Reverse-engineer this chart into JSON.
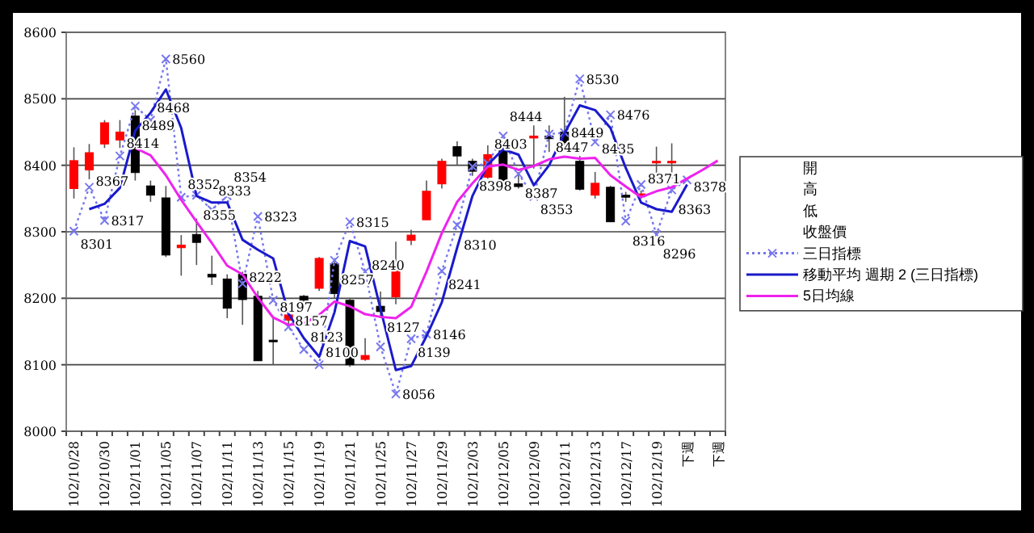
{
  "chart_data": {
    "type": "candlestick",
    "categories": [
      "102/10/28",
      null,
      "102/10/30",
      null,
      "102/11/01",
      null,
      "102/11/05",
      null,
      "102/11/07",
      null,
      "102/11/11",
      null,
      "102/11/13",
      null,
      "102/11/15",
      null,
      "102/11/19",
      null,
      "102/11/21",
      null,
      "102/11/25",
      null,
      "102/11/27",
      null,
      "102/11/29",
      null,
      "102/12/03",
      null,
      "102/12/05",
      null,
      "102/12/09",
      null,
      "102/12/11",
      null,
      "102/12/13",
      null,
      "102/12/17",
      null,
      "102/12/19",
      null,
      "下週",
      null,
      "下週"
    ],
    "ylim": [
      8000,
      8600
    ],
    "yticks": [
      8000,
      8100,
      8200,
      8300,
      8400,
      8500,
      8600
    ],
    "grid": "y",
    "legend": "right",
    "colors": [
      "#ff0000",
      "#ff0000",
      "#ff0000",
      "#ff0000",
      "#000000",
      "#000000",
      "#000000",
      "#ff0000",
      "#000000",
      "#000000",
      "#000000",
      "#000000",
      "#000000",
      "#000000",
      "#ff0000",
      "#000000",
      "#ff0000",
      "#000000",
      "#000000",
      "#ff0000",
      "#000000",
      "#ff0000",
      "#ff0000",
      "#ff0000",
      "#ff0000",
      "#000000",
      "#000000",
      "#ff0000",
      "#000000",
      "#000000",
      "#ff0000",
      "#000000",
      "#000000",
      "#000000",
      "#ff0000",
      "#000000",
      "#000000",
      "#ff0000",
      "#ff0000",
      "#ff0000",
      null,
      null,
      null
    ],
    "annotations": [
      "開",
      "高",
      "低",
      "收盤價"
    ],
    "ohlc": [
      [
        8365,
        8427,
        8350,
        8407
      ],
      [
        8393,
        8432,
        8379,
        8419
      ],
      [
        8432,
        8468,
        8426,
        8464
      ],
      [
        8438,
        8468,
        8426,
        8450
      ],
      [
        8474,
        8483,
        8377,
        8389
      ],
      [
        8369,
        8377,
        8345,
        8355
      ],
      [
        8351,
        8369,
        8262,
        8265
      ],
      [
        8276,
        8295,
        8234,
        8280
      ],
      [
        8296,
        8320,
        8250,
        8284
      ],
      [
        8236,
        8264,
        8220,
        8232
      ],
      [
        8229,
        8236,
        8170,
        8185
      ],
      [
        8236,
        8240,
        8160,
        8198
      ],
      [
        8203,
        8211,
        8106,
        8106
      ],
      [
        8137,
        8171,
        8100,
        8135
      ],
      [
        8167,
        8180,
        8160,
        8175
      ],
      [
        8203,
        8205,
        8193,
        8197
      ],
      [
        8215,
        8262,
        8211,
        8260
      ],
      [
        8252,
        8256,
        8200,
        8207
      ],
      [
        8197,
        8199,
        8097,
        8100
      ],
      [
        8108,
        8140,
        8106,
        8114
      ],
      [
        8188,
        8210,
        8170,
        8180
      ],
      [
        8202,
        8285,
        8191,
        8248
      ],
      [
        8287,
        8303,
        8280,
        8295
      ],
      [
        8318,
        8377,
        8318,
        8361
      ],
      [
        8372,
        8410,
        8365,
        8406
      ],
      [
        8428,
        8436,
        8400,
        8414
      ],
      [
        8406,
        8410,
        8384,
        8391
      ],
      [
        8382,
        8430,
        8380,
        8416
      ],
      [
        8426,
        8436,
        8365,
        8377
      ],
      [
        8372,
        8390,
        8365,
        8368
      ],
      [
        8441,
        8460,
        8395,
        8444
      ],
      [
        8444,
        8460,
        8420,
        8440
      ],
      [
        8450,
        8503,
        8430,
        8434
      ],
      [
        8406,
        8414,
        8362,
        8364
      ],
      [
        8355,
        8390,
        8350,
        8373
      ],
      [
        8367,
        8369,
        8315,
        8315
      ],
      [
        8355,
        8360,
        8345,
        8352
      ],
      [
        8355,
        8362,
        8350,
        8357
      ],
      [
        8404,
        8428,
        8384,
        8406
      ],
      [
        8404,
        8433,
        8380,
        8406
      ],
      null,
      null,
      null
    ],
    "series": [
      {
        "type": "line",
        "name": "三日指標",
        "color": "#7777ee",
        "marker": "cross",
        "line_style": "dotted",
        "data_labels": true,
        "values": [
          8301,
          8367,
          8317,
          8414,
          8489,
          8468,
          8560,
          8352,
          8355,
          8333,
          8354,
          8222,
          8323,
          8197,
          8157,
          8123,
          8100,
          8257,
          8315,
          8240,
          8127,
          8056,
          8139,
          8146,
          8241,
          8310,
          8398,
          8403,
          8444,
          8387,
          8353,
          8447,
          8449,
          8530,
          8435,
          8476,
          8316,
          8371,
          8296,
          8363,
          8378,
          null,
          null
        ]
      },
      {
        "type": "line",
        "name": "移動平均 週期 2 (三日指標)",
        "color": "#1a1acc",
        "line_style": "solid",
        "values": [
          null,
          8334,
          8342,
          8366,
          8452,
          8479,
          8514,
          8456,
          8354,
          8344,
          8344,
          8288,
          8273,
          8260,
          8177,
          8140,
          8112,
          8179,
          8286,
          8278,
          8184,
          8092,
          8098,
          8143,
          8194,
          8276,
          8354,
          8401,
          8424,
          8416,
          8370,
          8400,
          8448,
          8490,
          8483,
          8456,
          8396,
          8344,
          8334,
          8330,
          8371,
          null,
          null
        ]
      },
      {
        "type": "line",
        "name": "5日均線",
        "color": "#ee22ee",
        "line_style": "solid",
        "values": [
          null,
          null,
          null,
          null,
          8426,
          8415,
          8385,
          8348,
          8315,
          8283,
          8249,
          8236,
          8201,
          8171,
          8160,
          8162,
          8175,
          8195,
          8188,
          8176,
          8172,
          8170,
          8187,
          8240,
          8298,
          8345,
          8373,
          8398,
          8401,
          8393,
          8399,
          8409,
          8413,
          8410,
          8411,
          8385,
          8368,
          8352,
          8361,
          8367,
          8380,
          8393,
          8407
        ]
      }
    ]
  }
}
